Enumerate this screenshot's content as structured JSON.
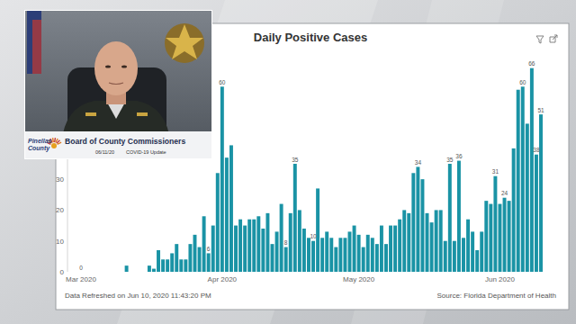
{
  "chart_data": {
    "type": "bar",
    "title": "Daily Positive Cases",
    "categories": [
      "Mar 2020",
      null,
      null,
      null,
      null,
      null,
      null,
      null,
      null,
      null,
      null,
      null,
      null,
      null,
      null,
      null,
      null,
      null,
      null,
      null,
      null,
      null,
      null,
      null,
      null,
      null,
      null,
      null,
      null,
      null,
      null,
      "Apr 2020",
      null,
      null,
      null,
      null,
      null,
      null,
      null,
      null,
      null,
      null,
      null,
      null,
      null,
      null,
      null,
      null,
      null,
      null,
      null,
      null,
      null,
      null,
      null,
      null,
      null,
      null,
      null,
      null,
      null,
      "May 2020",
      null,
      null,
      null,
      null,
      null,
      null,
      null,
      null,
      null,
      null,
      null,
      null,
      null,
      null,
      null,
      null,
      null,
      null,
      null,
      null,
      null,
      null,
      null,
      null,
      null,
      null,
      null,
      null,
      null,
      null,
      "Jun 2020",
      null,
      null,
      null,
      null,
      null,
      null,
      null,
      null,
      null
    ],
    "values": [
      0,
      0,
      0,
      0,
      0,
      0,
      0,
      0,
      0,
      0,
      2,
      0,
      0,
      0,
      0,
      2,
      1,
      7,
      4,
      4,
      6,
      9,
      4,
      4,
      9,
      12,
      8,
      18,
      6,
      15,
      32,
      60,
      37,
      41,
      15,
      17,
      15,
      17,
      17,
      18,
      14,
      19,
      9,
      13,
      22,
      8,
      19,
      35,
      20,
      14,
      11,
      10,
      27,
      11,
      13,
      11,
      8,
      11,
      11,
      13,
      15,
      12,
      8,
      12,
      11,
      9,
      15,
      9,
      15,
      15,
      17,
      20,
      19,
      32,
      34,
      30,
      19,
      16,
      20,
      20,
      10,
      35,
      10,
      36,
      11,
      17,
      13,
      7,
      13,
      23,
      22,
      31,
      22,
      24,
      23,
      40,
      59,
      60,
      48,
      66,
      38,
      51
    ],
    "value_labels": [
      "0",
      null,
      null,
      null,
      null,
      null,
      null,
      null,
      null,
      null,
      null,
      null,
      null,
      null,
      null,
      null,
      null,
      null,
      null,
      null,
      null,
      null,
      null,
      null,
      null,
      null,
      null,
      null,
      "6",
      null,
      null,
      "60",
      null,
      null,
      null,
      null,
      null,
      null,
      null,
      null,
      null,
      null,
      null,
      null,
      null,
      "8",
      null,
      "35",
      null,
      null,
      null,
      "10",
      null,
      null,
      null,
      null,
      null,
      null,
      null,
      null,
      null,
      null,
      null,
      null,
      null,
      null,
      null,
      null,
      null,
      null,
      null,
      null,
      null,
      null,
      "34",
      null,
      null,
      null,
      null,
      null,
      null,
      "35",
      null,
      "36",
      null,
      null,
      null,
      null,
      null,
      null,
      null,
      "31",
      null,
      "24",
      null,
      null,
      null,
      "60",
      null,
      "66",
      "38",
      "51"
    ],
    "data_labels": true,
    "color": "#1a93a5",
    "ylim": [
      0,
      70
    ],
    "yticks": [
      0,
      10,
      20,
      30
    ],
    "grid": false,
    "annotations": [
      "Data Refreshed on Jun 10, 2020 11:43:20 PM",
      "Source: Florida Department of Health"
    ]
  },
  "inset": {
    "logo": "Pinellas County",
    "title": "Board of County Commissioners",
    "date": "06/11/20",
    "caption": "COVID-19 Update"
  }
}
